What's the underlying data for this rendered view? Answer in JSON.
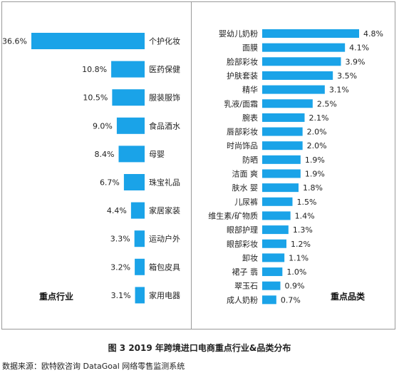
{
  "chart_data": [
    {
      "type": "bar",
      "orientation": "horizontal",
      "title": "重点行业",
      "categories": [
        "个护化妆",
        "医药保健",
        "服装服饰",
        "食品酒水",
        "母婴",
        "珠宝礼品",
        "家居家装",
        "运动户外",
        "箱包皮具",
        "家用电器"
      ],
      "values": [
        36.6,
        10.8,
        10.5,
        9.0,
        8.4,
        6.7,
        4.4,
        3.3,
        3.2,
        3.1
      ],
      "labels": [
        "36.6%",
        "10.8%",
        "10.5%",
        "9.0%",
        "8.4%",
        "6.7%",
        "4.4%",
        "3.3%",
        "3.2%",
        "3.1%"
      ],
      "unit": "%",
      "bar_color": "#1aa3e8"
    },
    {
      "type": "bar",
      "orientation": "horizontal",
      "title": "重点品类",
      "categories": [
        "婴幼儿奶粉",
        "面膜",
        "脸部彩妆",
        "护肤套装",
        "精华",
        "乳液/面霜",
        "腕表",
        "唇部彩妆",
        "时尚饰品",
        "防晒",
        "洁面 爽",
        "肤水 婴",
        "儿尿裤",
        "维生素/矿物质",
        "眼部护理",
        "眼部彩妆",
        "卸妆",
        "裙子 翡",
        "翠玉石",
        "成人奶粉"
      ],
      "values": [
        4.8,
        4.1,
        3.9,
        3.5,
        3.1,
        2.5,
        2.1,
        2.0,
        2.0,
        1.9,
        1.9,
        1.8,
        1.5,
        1.4,
        1.3,
        1.2,
        1.1,
        1.0,
        0.9,
        0.7
      ],
      "labels": [
        "4.8%",
        "4.1%",
        "3.9%",
        "3.5%",
        "3.1%",
        "2.5%",
        "2.1%",
        "2.0%",
        "2.0%",
        "1.9%",
        "1.9%",
        "1.8%",
        "1.5%",
        "1.4%",
        "1.3%",
        "1.2%",
        "1.1%",
        "1.0%",
        "0.9%",
        "0.7%"
      ],
      "unit": "%",
      "bar_color": "#1aa3e8"
    }
  ],
  "caption": "图 3    2019 年跨境进口电商重点行业&品类分布",
  "source": "数据来源：欧特欧咨询 DataGoal 网络零售监测系统"
}
